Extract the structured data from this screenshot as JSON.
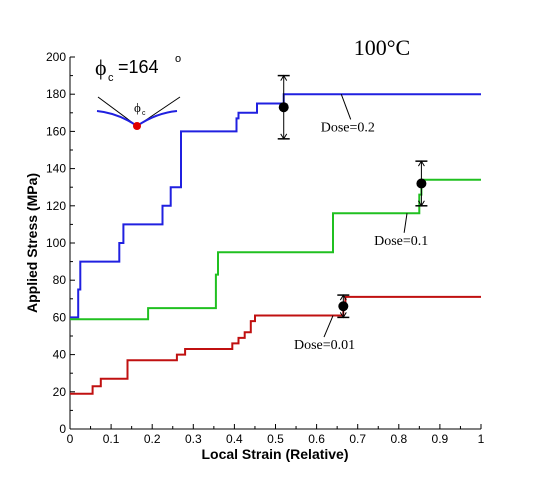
{
  "chart_data": {
    "type": "line",
    "condition_label": "100°C",
    "contact_angle": {
      "symbol": "ϕ",
      "subscript": "c",
      "value_text": "=164",
      "degree": "o"
    },
    "inset": {
      "symbol": "ϕ",
      "subscript": "c"
    },
    "xlabel": "Local Strain (Relative)",
    "ylabel": "Applied Stress (MPa)",
    "xlim": [
      0,
      1
    ],
    "ylim": [
      0,
      200
    ],
    "x_ticks": [
      0,
      0.1,
      0.2,
      0.3,
      0.4,
      0.5,
      0.6,
      0.7,
      0.8,
      0.9,
      1
    ],
    "x_tick_labels": [
      "0",
      "0.1",
      "0.2",
      "0.3",
      "0.4",
      "0.5",
      "0.6",
      "0.7",
      "0.8",
      "0.9",
      "1"
    ],
    "y_ticks": [
      0,
      20,
      40,
      60,
      80,
      100,
      120,
      140,
      160,
      180,
      200
    ],
    "y_tick_labels": [
      "0",
      "20",
      "40",
      "60",
      "80",
      "100",
      "120",
      "140",
      "160",
      "180",
      "200"
    ],
    "series": [
      {
        "name": "Dose=0.2",
        "color": "#2020e0",
        "points": [
          [
            0,
            60
          ],
          [
            0.02,
            60
          ],
          [
            0.02,
            75
          ],
          [
            0.025,
            75
          ],
          [
            0.025,
            90
          ],
          [
            0.12,
            90
          ],
          [
            0.12,
            100
          ],
          [
            0.13,
            100
          ],
          [
            0.13,
            110
          ],
          [
            0.225,
            110
          ],
          [
            0.225,
            120
          ],
          [
            0.245,
            120
          ],
          [
            0.245,
            130
          ],
          [
            0.27,
            130
          ],
          [
            0.27,
            160
          ],
          [
            0.405,
            160
          ],
          [
            0.405,
            167
          ],
          [
            0.41,
            167
          ],
          [
            0.41,
            170
          ],
          [
            0.455,
            170
          ],
          [
            0.455,
            175
          ],
          [
            0.52,
            175
          ],
          [
            0.52,
            180
          ],
          [
            1,
            180
          ]
        ],
        "marker": {
          "x": 0.52,
          "y": 173,
          "err_low": 156,
          "err_high": 190
        },
        "label": {
          "text": "Dose=0.2",
          "x": 0.61,
          "y": 160,
          "leader_x": 0.66,
          "leader_y": 180
        }
      },
      {
        "name": "Dose=0.1",
        "color": "#20c020",
        "points": [
          [
            0,
            59
          ],
          [
            0.19,
            59
          ],
          [
            0.19,
            65
          ],
          [
            0.355,
            65
          ],
          [
            0.355,
            83
          ],
          [
            0.36,
            83
          ],
          [
            0.36,
            95
          ],
          [
            0.64,
            95
          ],
          [
            0.64,
            116
          ],
          [
            0.85,
            116
          ],
          [
            0.85,
            126
          ],
          [
            0.855,
            126
          ],
          [
            0.855,
            134
          ],
          [
            1,
            134
          ]
        ],
        "marker": {
          "x": 0.855,
          "y": 132,
          "err_low": 120,
          "err_high": 144
        },
        "label": {
          "text": "Dose=0.1",
          "x": 0.74,
          "y": 99,
          "leader_x": 0.82,
          "leader_y": 116
        }
      },
      {
        "name": "Dose=0.01",
        "color": "#c01010",
        "points": [
          [
            0,
            19
          ],
          [
            0.055,
            19
          ],
          [
            0.055,
            23
          ],
          [
            0.075,
            23
          ],
          [
            0.075,
            27
          ],
          [
            0.14,
            27
          ],
          [
            0.14,
            37
          ],
          [
            0.26,
            37
          ],
          [
            0.26,
            40
          ],
          [
            0.28,
            40
          ],
          [
            0.28,
            43
          ],
          [
            0.395,
            43
          ],
          [
            0.395,
            46
          ],
          [
            0.41,
            46
          ],
          [
            0.41,
            49
          ],
          [
            0.425,
            49
          ],
          [
            0.425,
            52
          ],
          [
            0.44,
            52
          ],
          [
            0.44,
            58
          ],
          [
            0.45,
            58
          ],
          [
            0.45,
            61
          ],
          [
            0.665,
            61
          ],
          [
            0.665,
            68
          ],
          [
            0.67,
            68
          ],
          [
            0.67,
            71
          ],
          [
            1,
            71
          ]
        ],
        "marker": {
          "x": 0.665,
          "y": 66,
          "err_low": 60,
          "err_high": 72
        },
        "label": {
          "text": "Dose=0.01",
          "x": 0.545,
          "y": 43,
          "leader_x": 0.64,
          "leader_y": 61
        }
      }
    ],
    "grid": false,
    "legend": "none"
  }
}
